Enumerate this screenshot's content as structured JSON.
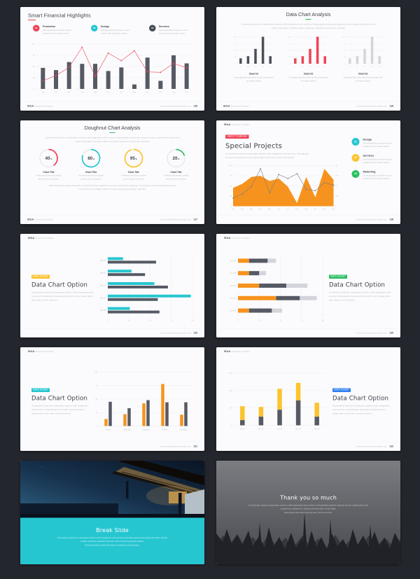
{
  "footer": {
    "brand_bold": "SOLA",
    "brand_rest": "Business Template",
    "site": "www.solabusinesstemplate.com"
  },
  "misc": {
    "percent": "%"
  },
  "colors": {
    "red": "#ef4355",
    "teal": "#26c6d1",
    "yellow": "#fdc32f",
    "green": "#2abf62",
    "orange": "#f6931e",
    "blue": "#2f80ed",
    "dark": "#474b54",
    "bar_dark": "#565a64",
    "bar_light": "#d3d5da",
    "page_bg": "#24262d",
    "slide_bg": "#fbfbfd"
  },
  "slides": [
    {
      "title": "Smart Financial Highlights",
      "page": "115",
      "legend": [
        {
          "num": "01",
          "color": "#ef4355",
          "label": "Promotion",
          "blurb": "Synergistically dominate sound portals with formulate clearly"
        },
        {
          "num": "02",
          "color": "#26c6d1",
          "label": "Design",
          "blurb": "Synergistically dominate sound portals with formulate clearly"
        },
        {
          "num": "03",
          "color": "#474b54",
          "label": "Services",
          "blurb": "Synergistically dominate sound portals with formulate clearly"
        }
      ],
      "chart_data": {
        "type": "bar-line",
        "categories": [
          "Jan",
          "Feb",
          "Mar",
          "Apr",
          "May",
          "Jun",
          "Jul",
          "Aug",
          "Sep",
          "Oct",
          "Nov",
          "Dec"
        ],
        "bars": [
          47,
          42,
          60,
          56,
          56,
          40,
          48,
          10,
          70,
          18,
          75,
          57
        ],
        "line": [
          18,
          30,
          48,
          93,
          28,
          80,
          63,
          85,
          38,
          37,
          57,
          47
        ],
        "yticks": [
          0,
          25,
          50,
          75,
          100
        ],
        "ylim": 100,
        "bar_color": "#565a64",
        "line_color": "#ef4355"
      }
    },
    {
      "title": "Data Chart Analysis",
      "page": "116",
      "intro": "Competently optimize cooperative systems with imaginative web services. Dramatically incorporate dynamic human capital rather than client centric information. Quickly enable enterprise materials via premium methods.",
      "charts": [
        {
          "label": "Chart 01",
          "blurb": "Synergistically dominate sound portals with formulate clearly",
          "chart_data": {
            "type": "mini-bar",
            "categories": [
              "01",
              "02",
              "03",
              "04",
              "05"
            ],
            "values": [
              20,
              28,
              55,
              100,
              28
            ],
            "yticks": [
              0,
              25,
              50,
              75,
              100
            ],
            "ylim": 100,
            "color": "#4b4f58"
          }
        },
        {
          "label": "Chart 02",
          "blurb": "Synergistically dominate sound portals with formulate clearly",
          "chart_data": {
            "type": "mini-bar",
            "categories": [
              "01",
              "02",
              "03",
              "04",
              "05"
            ],
            "values": [
              20,
              28,
              55,
              100,
              28
            ],
            "yticks": [
              0,
              25,
              50,
              75,
              100
            ],
            "ylim": 100,
            "color": "#ef4355"
          }
        },
        {
          "label": "Chart 03",
          "blurb": "Synergistically dominate sound portals with formulate clearly",
          "chart_data": {
            "type": "mini-bar",
            "categories": [
              "01",
              "02",
              "03",
              "04",
              "05"
            ],
            "values": [
              20,
              28,
              55,
              100,
              28
            ],
            "yticks": [
              0,
              25,
              50,
              75,
              100
            ],
            "ylim": 100,
            "color": "#d3d5da"
          }
        }
      ]
    },
    {
      "title": "Doughnut Chart Analysis",
      "page": "117",
      "intro": "Competently optimize cooperative systems with imaginative web services. Dramatically incorporate dynamic human capital rather than client centric information. Quickly enable enterprise materials via premium methods.",
      "donuts": [
        {
          "value": 40,
          "label": "Chart Title",
          "blurb": "Professional human capital performance channels",
          "chart_data": {
            "type": "donut",
            "value": 40,
            "color": "#ef4355"
          }
        },
        {
          "value": 80,
          "label": "Chart Title",
          "blurb": "Professional human capital performance channels",
          "chart_data": {
            "type": "donut",
            "value": 80,
            "color": "#26c6d1"
          }
        },
        {
          "value": 95,
          "label": "Chart Title",
          "blurb": "Professional human capital performance channels",
          "chart_data": {
            "type": "donut",
            "value": 95,
            "color": "#fdc32f"
          }
        },
        {
          "value": 20,
          "label": "Chart Title",
          "blurb": "Professional human capital performance channels",
          "chart_data": {
            "type": "donut",
            "value": 20,
            "color": "#2abf62"
          }
        }
      ],
      "outro": "Enthusiastically enable standards compliant human capital via top-line performance channels. Completely element duplicate process improvements for highly efficient markets and plug-and-play materials."
    },
    {
      "badge": "ABOUT COMPANY",
      "title": "Special Projects",
      "page": "118",
      "blurb": "Competently optimize cooperative systems with imaginative web services. Dramatically incorporate dynamic human capital rather than client centric information.",
      "legend": [
        {
          "num": "01",
          "color": "#26c6d1",
          "label": "Design",
          "blurb": "Synergistically dominate sound portals with formulate clearly"
        },
        {
          "num": "02",
          "color": "#fdc32f",
          "label": "Services",
          "blurb": "Synergistically dominate sound portals with formulate clearly"
        },
        {
          "num": "03",
          "color": "#2abf62",
          "label": "Marketing",
          "blurb": "Synergistically dominate sound portals with formulate clearly"
        }
      ],
      "chart_data": {
        "type": "area-line",
        "categories": [
          "Jan",
          "Feb",
          "Mar",
          "Apr",
          "May",
          "Jun",
          "Jul",
          "Aug",
          "Sep",
          "Oct",
          "Nov",
          "Dec"
        ],
        "area": [
          45,
          55,
          72,
          75,
          62,
          68,
          48,
          8,
          72,
          22,
          92,
          65
        ],
        "line": [
          20,
          30,
          48,
          92,
          33,
          78,
          68,
          80,
          42,
          38,
          58,
          52
        ],
        "yticks": [
          0,
          25,
          50,
          75,
          100
        ],
        "ylim": 100,
        "yticks_right": [
          "0",
          "22.5",
          "45",
          "67.5",
          "90"
        ],
        "area_color": "#f6931e",
        "line_color": "#787c85"
      }
    },
    {
      "badge": "DATA CHART",
      "title": "Data Chart Option",
      "page": "119",
      "blurb": "Competently optimize cooperative systems with imaginative web services. Dramatically incorporate dynamic human capital rather than client centric business.",
      "chart_data": {
        "type": "hbar-group",
        "items": [
          "Item 01",
          "Item 02",
          "Item 03",
          "Item 04",
          "Item 05"
        ],
        "series": [
          {
            "name": "Series A",
            "color": "#26c6d1",
            "values": [
              18,
              28,
              55,
              98,
              26
            ]
          },
          {
            "name": "Series B",
            "color": "#565a64",
            "values": [
              57,
              44,
              71,
              59,
              61
            ]
          }
        ],
        "xticks": [
          0,
          25,
          50,
          75,
          100
        ],
        "xlim": 100
      }
    },
    {
      "badge": "DATA CHART",
      "title": "Data Chart Option",
      "page": "120",
      "blurb": "Competently optimize cooperative systems with imaginative web services. Dramatically incorporate dynamic human capital rather than client centric business.",
      "chart_data": {
        "type": "hbar-stack",
        "items": [
          "Item 01",
          "Item 02",
          "Item 03",
          "Item 04",
          "Item 05"
        ],
        "colors": [
          "#f6931e",
          "#565a64",
          "#d3d5da"
        ],
        "rows": [
          [
            13,
            22,
            10
          ],
          [
            13,
            12,
            8
          ],
          [
            25,
            32,
            25
          ],
          [
            45,
            28,
            20
          ],
          [
            13,
            27,
            12
          ]
        ],
        "xticks": [
          0,
          25,
          50,
          75,
          100
        ],
        "xlim": 100
      }
    },
    {
      "badge": "DATA CHART",
      "title": "Data Chart Option",
      "page": "121",
      "blurb": "Competently optimize cooperative systems with imaginative web services. Dramatically incorporate dynamic human capital rather than client centric business.",
      "chart_data": {
        "type": "bar-group",
        "categories": [
          "Design",
          "Marketing",
          "Consulting",
          "Finance",
          "Shopping"
        ],
        "series": [
          {
            "name": "Series A",
            "color": "#f6931e",
            "values": [
              13,
              22,
              42,
              78,
              21
            ]
          },
          {
            "name": "Series B",
            "color": "#565a64",
            "values": [
              45,
              33,
              48,
              44,
              44
            ]
          }
        ],
        "yticks": [
          0,
          25,
          50,
          75,
          100
        ],
        "ylim": 100
      }
    },
    {
      "badge": "DATA CHART",
      "title": "Data Chart Option",
      "page": "122",
      "blurb": "Competently optimize cooperative systems with imaginative web services. Dramatically incorporate dynamic human capital rather than client centric business.",
      "chart_data": {
        "type": "bar-stack",
        "categories": [
          "Item 01",
          "Item 02",
          "Item 03",
          "Item 04",
          "Item 05"
        ],
        "series": [
          {
            "name": "Base",
            "color": "#565a64",
            "values": [
              15,
              25,
              45,
              72,
              25
            ]
          },
          {
            "name": "Top",
            "color": "#fdc32f",
            "values": [
              40,
              28,
              60,
              50,
              40
            ]
          }
        ],
        "yticks": [
          0,
          50,
          100,
          150
        ],
        "ylim": 150
      }
    },
    {
      "title": "Break Slide",
      "blurb": "Competently optimize cooperative systems with imaginative web services extending appropriate leadership skills. Quickly enable enterprise materials whereas client centric integrated markets.",
      "blurb2": "Enthusiastically enable standards compliant methodologies."
    },
    {
      "title": "Thank you so much",
      "blurb": "Competently optimize cooperative systems with imaginative web services. Dramatically expedite dynamic human capital rather than progressive catalysts for change whereas client centric data.",
      "blurb2": "Seamlessly advocate plug-and-play internal sources."
    }
  ]
}
